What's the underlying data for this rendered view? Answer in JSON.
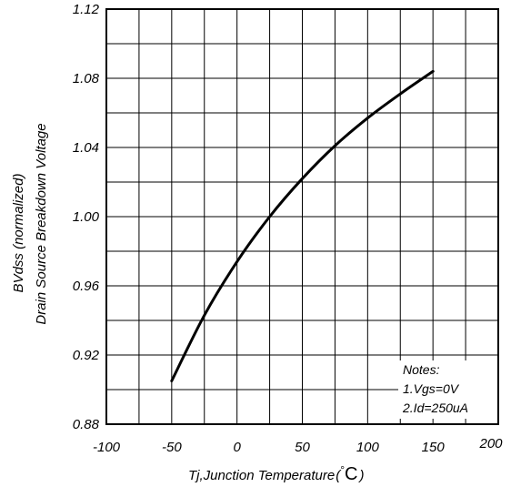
{
  "chart_data": {
    "type": "line",
    "xlabel": "Tj,Junction Temperature",
    "xunit_degree": "°",
    "xunit_letter": "C",
    "xunit_close": ")",
    "ylabel_line1": "BVdss (normalized)",
    "ylabel_line2": "Drain Source Breakdown Voltage",
    "xlim": [
      -100,
      200
    ],
    "ylim": [
      0.88,
      1.12
    ],
    "xticks": [
      -100,
      -50,
      0,
      50,
      100,
      150,
      200
    ],
    "xtick_labels": [
      "-100",
      "-50",
      "0",
      "50",
      "100",
      "150",
      "200"
    ],
    "yticks": [
      0.88,
      0.92,
      0.96,
      1.0,
      1.04,
      1.08,
      1.12
    ],
    "ytick_labels": [
      "0.88",
      "0.92",
      "0.96",
      "1.00",
      "1.04",
      "1.08",
      "1.12"
    ],
    "grid": true,
    "grid_step_x": 25,
    "grid_step_y": 0.02,
    "series": [
      {
        "x": [
          -50,
          -25,
          0,
          25,
          50,
          75,
          100,
          125,
          150
        ],
        "y": [
          0.905,
          0.943,
          0.974,
          1.0,
          1.022,
          1.041,
          1.057,
          1.071,
          1.084
        ],
        "color": "#000000"
      }
    ],
    "notes": [
      "Notes:",
      "1.Vgs=0V",
      "2.Id=250uA"
    ]
  }
}
